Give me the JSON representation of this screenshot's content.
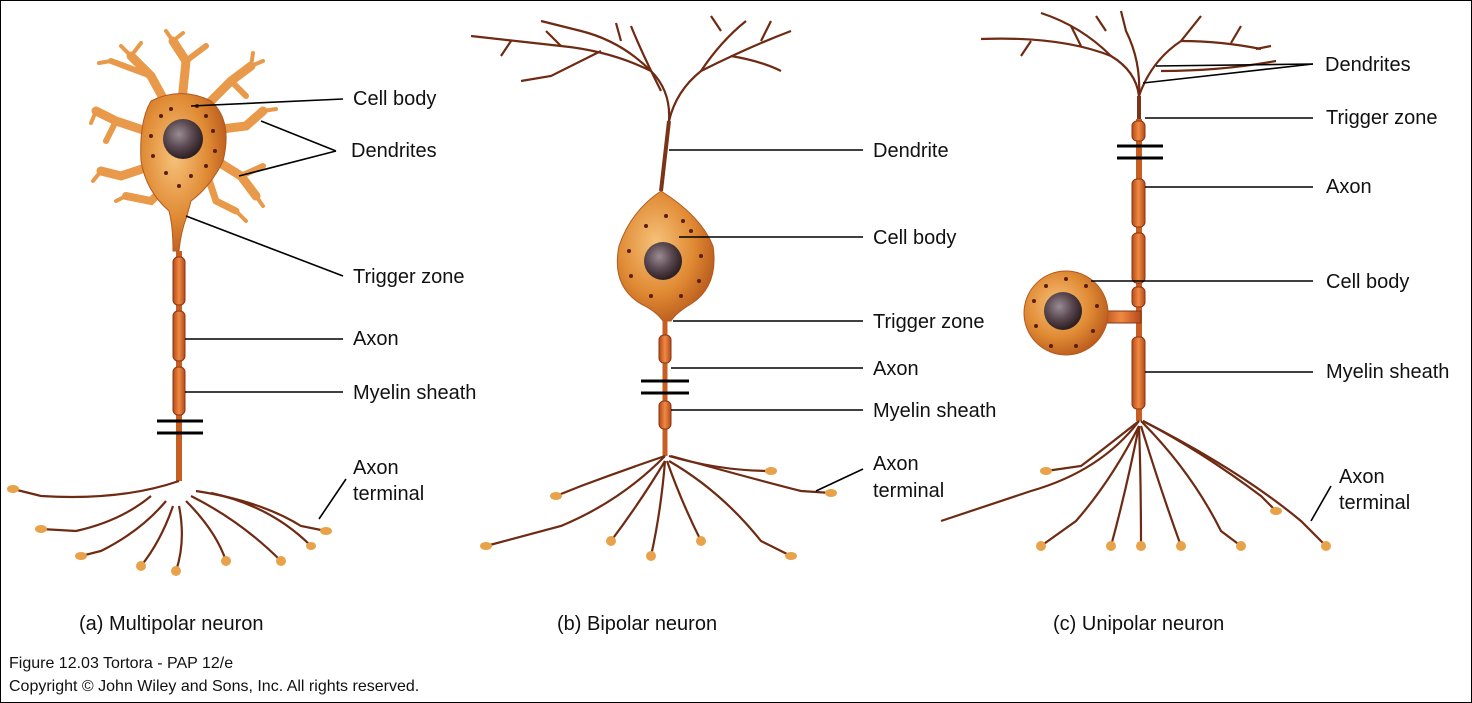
{
  "colors": {
    "neuron_fill": "#e07a2c",
    "neuron_light": "#f3b56b",
    "branch": "#6e2a12",
    "nucleus": "#5d4a4a",
    "spots": "#5a1d0a",
    "leader": "#000000"
  },
  "panel_a": {
    "caption": "(a) Multipolar neuron",
    "cell_body": "Cell body",
    "dendrites": "Dendrites",
    "trigger_zone": "Trigger zone",
    "axon": "Axon",
    "myelin_sheath": "Myelin sheath",
    "axon_terminal_1": "Axon",
    "axon_terminal_2": "terminal"
  },
  "panel_b": {
    "caption": "(b) Bipolar neuron",
    "dendrite": "Dendrite",
    "cell_body": "Cell body",
    "trigger_zone": "Trigger zone",
    "axon": "Axon",
    "myelin_sheath": "Myelin sheath",
    "axon_terminal_1": "Axon",
    "axon_terminal_2": "terminal"
  },
  "panel_c": {
    "caption": "(c) Unipolar neuron",
    "dendrites": "Dendrites",
    "trigger_zone": "Trigger zone",
    "axon": "Axon",
    "cell_body": "Cell body",
    "myelin_sheath": "Myelin sheath",
    "axon_terminal_1": "Axon",
    "axon_terminal_2": "terminal"
  },
  "footer": {
    "line1": "Figure 12.03  Tortora - PAP 12/e",
    "line2": "Copyright © John Wiley and Sons, Inc. All rights reserved."
  }
}
